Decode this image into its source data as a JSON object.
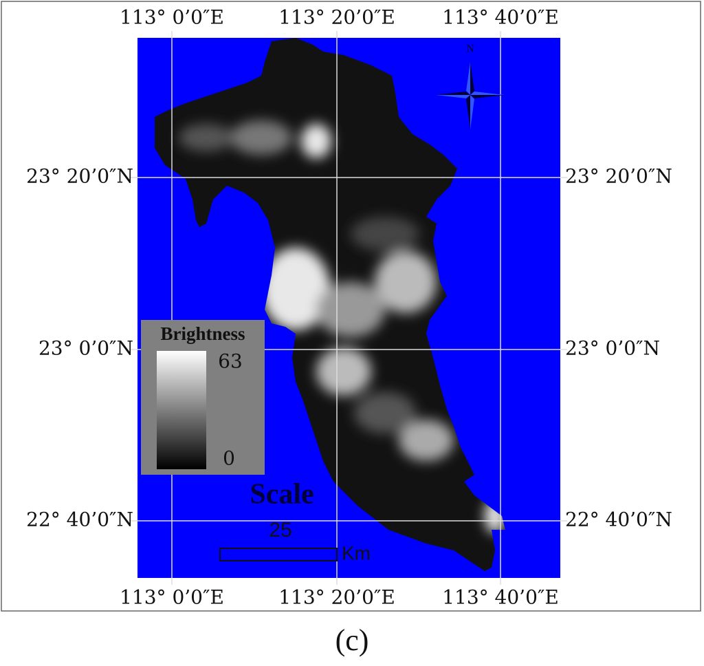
{
  "map": {
    "lon_labels": [
      "113°  0’0″E",
      "113°  20’0″E",
      "113°  40’0″E"
    ],
    "lat_labels": [
      "23°  20’0″N",
      "23°  0’0″N",
      "22°  40’0″N"
    ],
    "north": "N",
    "legend": {
      "title": "Brightness",
      "max": 63,
      "min": 0
    },
    "scale": {
      "title": "Scale",
      "value": 25,
      "unit": "Km"
    },
    "caption": "(c)"
  }
}
